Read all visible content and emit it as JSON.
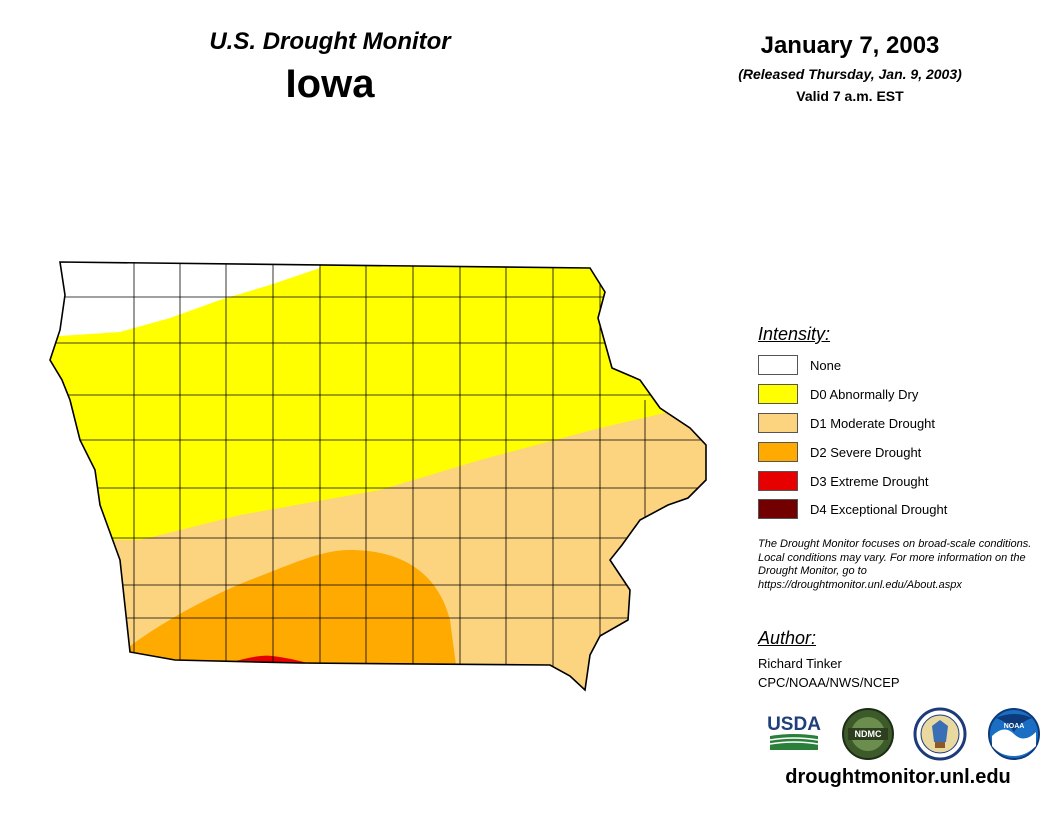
{
  "header": {
    "title": "U.S. Drought Monitor",
    "state": "Iowa",
    "date": "January 7, 2003",
    "released": "(Released Thursday, Jan. 9, 2003)",
    "valid": "Valid 7 a.m. EST"
  },
  "legend": {
    "heading": "Intensity:",
    "items": [
      {
        "label": "None",
        "color": "#ffffff"
      },
      {
        "label": "D0 Abnormally Dry",
        "color": "#ffff00"
      },
      {
        "label": "D1 Moderate Drought",
        "color": "#fcd37f"
      },
      {
        "label": "D2 Severe Drought",
        "color": "#ffaa00"
      },
      {
        "label": "D3 Extreme Drought",
        "color": "#e60000"
      },
      {
        "label": "D4 Exceptional Drought",
        "color": "#730000"
      }
    ]
  },
  "note": "The Drought Monitor focuses on broad-scale conditions. Local conditions may vary. For more information on the Drought Monitor, go to https://droughtmonitor.unl.edu/About.aspx",
  "author": {
    "heading": "Author:",
    "name": "Richard Tinker",
    "org": "CPC/NOAA/NWS/NCEP"
  },
  "logos": {
    "usda": "USDA",
    "ndmc": "NDMC",
    "noaa": "NOAA"
  },
  "website": "droughtmonitor.unl.edu"
}
